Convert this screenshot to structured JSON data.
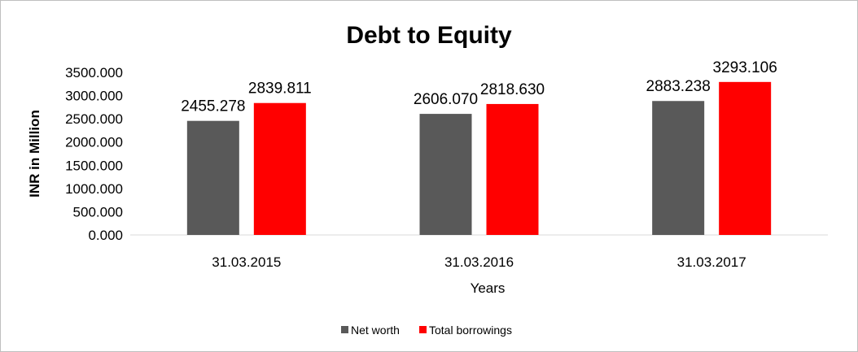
{
  "chart_data": {
    "type": "bar",
    "title": "Debt to Equity",
    "xlabel": "Years",
    "ylabel": "INR in Million",
    "categories": [
      "31.03.2015",
      "31.03.2016",
      "31.03.2017"
    ],
    "series": [
      {
        "name": "Net worth",
        "color": "#595959",
        "values": [
          2455.278,
          2606.07,
          2883.238
        ],
        "labels": [
          "2455.278",
          "2606.070",
          "2883.238"
        ]
      },
      {
        "name": "Total borrowings",
        "color": "#ff0000",
        "values": [
          2839.811,
          2818.63,
          3293.106
        ],
        "labels": [
          "2839.811",
          "2818.630",
          "3293.106"
        ]
      }
    ],
    "ylim": [
      0,
      3500
    ],
    "yticks": [
      "0.000",
      "500.000",
      "1000.000",
      "1500.000",
      "2000.000",
      "2500.000",
      "3000.000",
      "3500.000"
    ],
    "grid": false,
    "legend_position": "bottom"
  }
}
